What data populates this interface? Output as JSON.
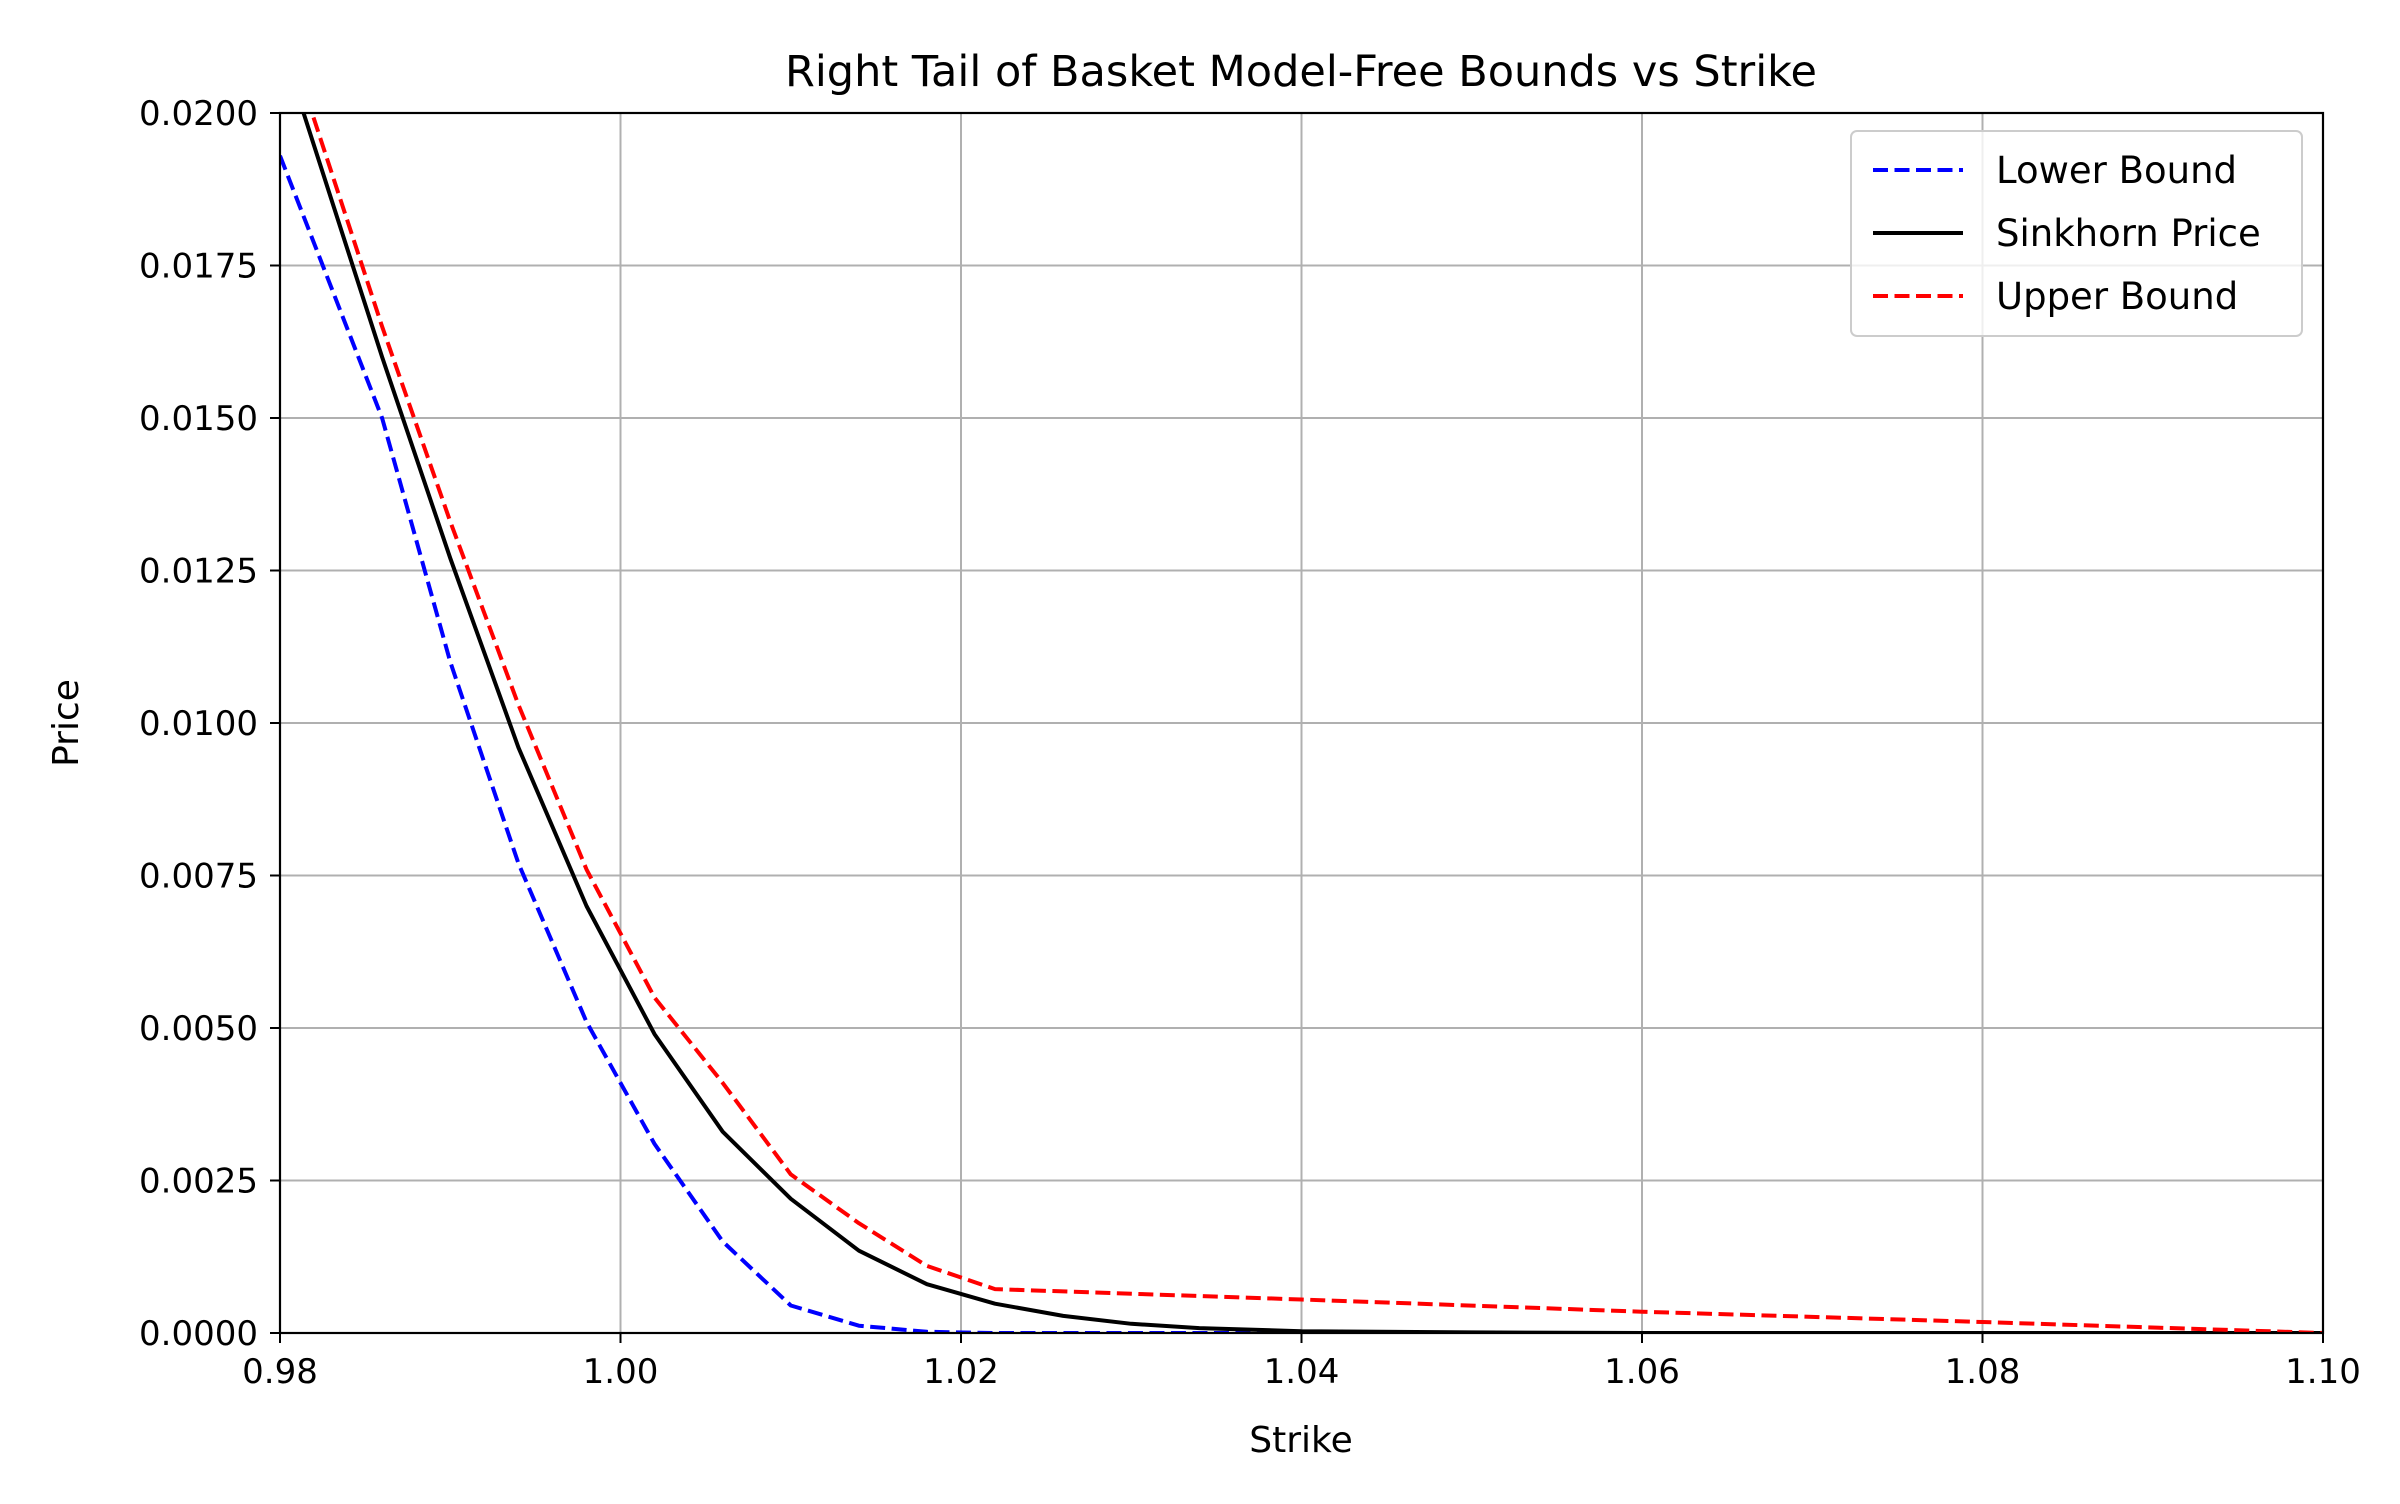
{
  "chart_data": {
    "type": "line",
    "title": "Right Tail of Basket Model-Free Bounds vs Strike",
    "xlabel": "Strike",
    "ylabel": "Price",
    "xlim": [
      0.98,
      1.1
    ],
    "ylim": [
      0.0,
      0.02
    ],
    "x_ticks": [
      0.98,
      1.0,
      1.02,
      1.04,
      1.06,
      1.08,
      1.1
    ],
    "x_tick_labels": [
      "0.98",
      "1.00",
      "1.02",
      "1.04",
      "1.06",
      "1.08",
      "1.10"
    ],
    "y_ticks": [
      0.0,
      0.0025,
      0.005,
      0.0075,
      0.01,
      0.0125,
      0.015,
      0.0175,
      0.02
    ],
    "y_tick_labels": [
      "0.0000",
      "0.0025",
      "0.0050",
      "0.0075",
      "0.0100",
      "0.0125",
      "0.0150",
      "0.0175",
      "0.0200"
    ],
    "grid": true,
    "legend_position": "upper right",
    "series": [
      {
        "name": "Lower Bound",
        "color": "#0000ff",
        "style": "dashed",
        "x": [
          0.98,
          0.986,
          0.99,
          0.994,
          0.998,
          1.002,
          1.006,
          1.01,
          1.014,
          1.018,
          1.022,
          1.026,
          1.03,
          1.034,
          1.04,
          1.05,
          1.06,
          1.07,
          1.08,
          1.09,
          1.1
        ],
        "y": [
          0.0193,
          0.015,
          0.011,
          0.0077,
          0.0051,
          0.0031,
          0.0015,
          0.00045,
          0.00012,
          2e-05,
          0.0,
          0.0,
          0.0,
          0.0,
          0.0,
          0.0,
          0.0,
          0.0,
          0.0,
          0.0,
          0.0
        ]
      },
      {
        "name": "Sinkhorn Price",
        "color": "#000000",
        "style": "solid",
        "x": [
          0.98,
          0.986,
          0.99,
          0.994,
          0.998,
          1.002,
          1.006,
          1.01,
          1.014,
          1.018,
          1.022,
          1.026,
          1.03,
          1.034,
          1.04,
          1.05,
          1.06,
          1.07,
          1.08,
          1.09,
          1.1
        ],
        "y": [
          0.0212,
          0.016,
          0.0127,
          0.0096,
          0.007,
          0.0049,
          0.0033,
          0.0022,
          0.00135,
          0.0008,
          0.00048,
          0.00028,
          0.00015,
          8e-05,
          3e-05,
          1e-05,
          0.0,
          0.0,
          0.0,
          0.0,
          0.0
        ]
      },
      {
        "name": "Upper Bound",
        "color": "#ff0000",
        "style": "dashed",
        "x": [
          0.98,
          0.986,
          0.99,
          0.994,
          0.998,
          1.002,
          1.006,
          1.01,
          1.014,
          1.018,
          1.022,
          1.04,
          1.06,
          1.08,
          1.1
        ],
        "y": [
          0.0216,
          0.0165,
          0.0133,
          0.0103,
          0.0076,
          0.0055,
          0.0041,
          0.0026,
          0.0018,
          0.0011,
          0.00072,
          0.00055,
          0.00035,
          0.00018,
          0.0
        ]
      }
    ]
  }
}
